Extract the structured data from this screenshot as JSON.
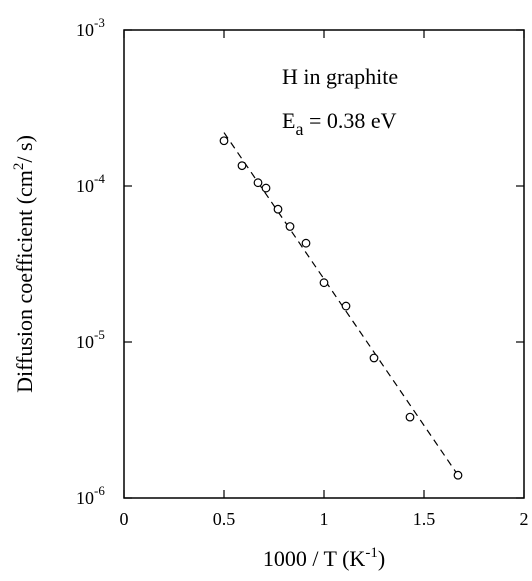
{
  "chart_data": {
    "type": "scatter",
    "title": "",
    "xlabel": {
      "main": "1000 / T  (K",
      "sup": "-1",
      "end": ")"
    },
    "ylabel": {
      "main": "Diffusion  coefficient  (cm",
      "sup": "2",
      "end": "/ s)"
    },
    "xlim": [
      0,
      2
    ],
    "ylim": [
      1e-06,
      0.001
    ],
    "yscale": "log",
    "grid": false,
    "x_ticks": [
      {
        "value": 0,
        "label": "0"
      },
      {
        "value": 0.5,
        "label": "0.5"
      },
      {
        "value": 1,
        "label": "1"
      },
      {
        "value": 1.5,
        "label": "1.5"
      },
      {
        "value": 2,
        "label": "2"
      }
    ],
    "y_ticks": [
      {
        "value": 1e-06,
        "base": "10",
        "exp": "-6"
      },
      {
        "value": 1e-05,
        "base": "10",
        "exp": "-5"
      },
      {
        "value": 0.0001,
        "base": "10",
        "exp": "-4"
      },
      {
        "value": 0.001,
        "base": "10",
        "exp": "-3"
      }
    ],
    "annotations": {
      "line1": "H  in  graphite",
      "line2_base": "E",
      "line2_sub": "a",
      "line2_rest": " = 0.38 eV"
    },
    "series": [
      {
        "style": "open-circle",
        "x": [
          0.5,
          0.59,
          0.67,
          0.71,
          0.77,
          0.83,
          0.91,
          1.0,
          1.11,
          1.25,
          1.43,
          1.67
        ],
        "y": [
          0.000195,
          0.000135,
          0.000105,
          9.7e-05,
          7.1e-05,
          5.5e-05,
          4.3e-05,
          2.4e-05,
          1.7e-05,
          7.9e-06,
          3.3e-06,
          1.4e-06
        ]
      }
    ],
    "fit_line": {
      "style": "dashed",
      "x": [
        0.5,
        1.67
      ],
      "y": [
        0.00022,
        1.4e-06
      ]
    }
  }
}
